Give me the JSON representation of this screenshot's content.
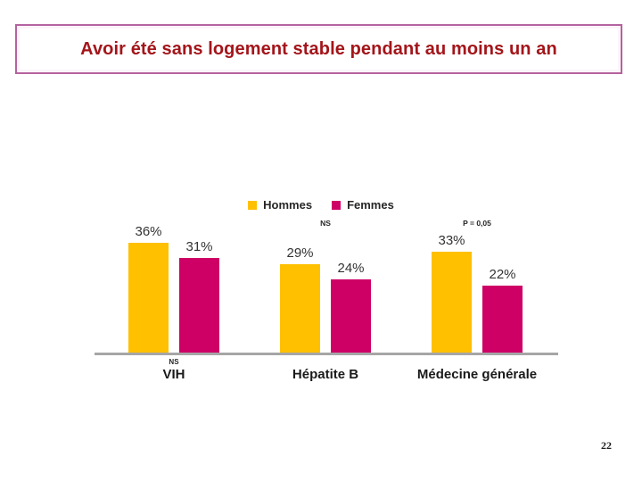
{
  "slide": {
    "title": "Avoir été sans logement stable pendant au moins un an",
    "page_number": "22"
  },
  "chart_data": {
    "type": "bar",
    "title": "Avoir été sans logement stable pendant au moins un an",
    "categories": [
      "VIH",
      "Hépatite B",
      "Médecine générale"
    ],
    "series": [
      {
        "name": "Hommes",
        "color": "#FFC000",
        "values": [
          36,
          29,
          33
        ]
      },
      {
        "name": "Femmes",
        "color": "#CE0065",
        "values": [
          31,
          24,
          22
        ]
      }
    ],
    "value_suffix": "%",
    "group_annotations": [
      "",
      "NS",
      "P = 0,05"
    ],
    "category_notes": [
      "NS",
      "",
      ""
    ],
    "ylim": [
      0,
      40
    ],
    "grid": false,
    "legend_position": "top",
    "axis_color": "#A6A6A6",
    "bar_label_color": "#333333"
  }
}
